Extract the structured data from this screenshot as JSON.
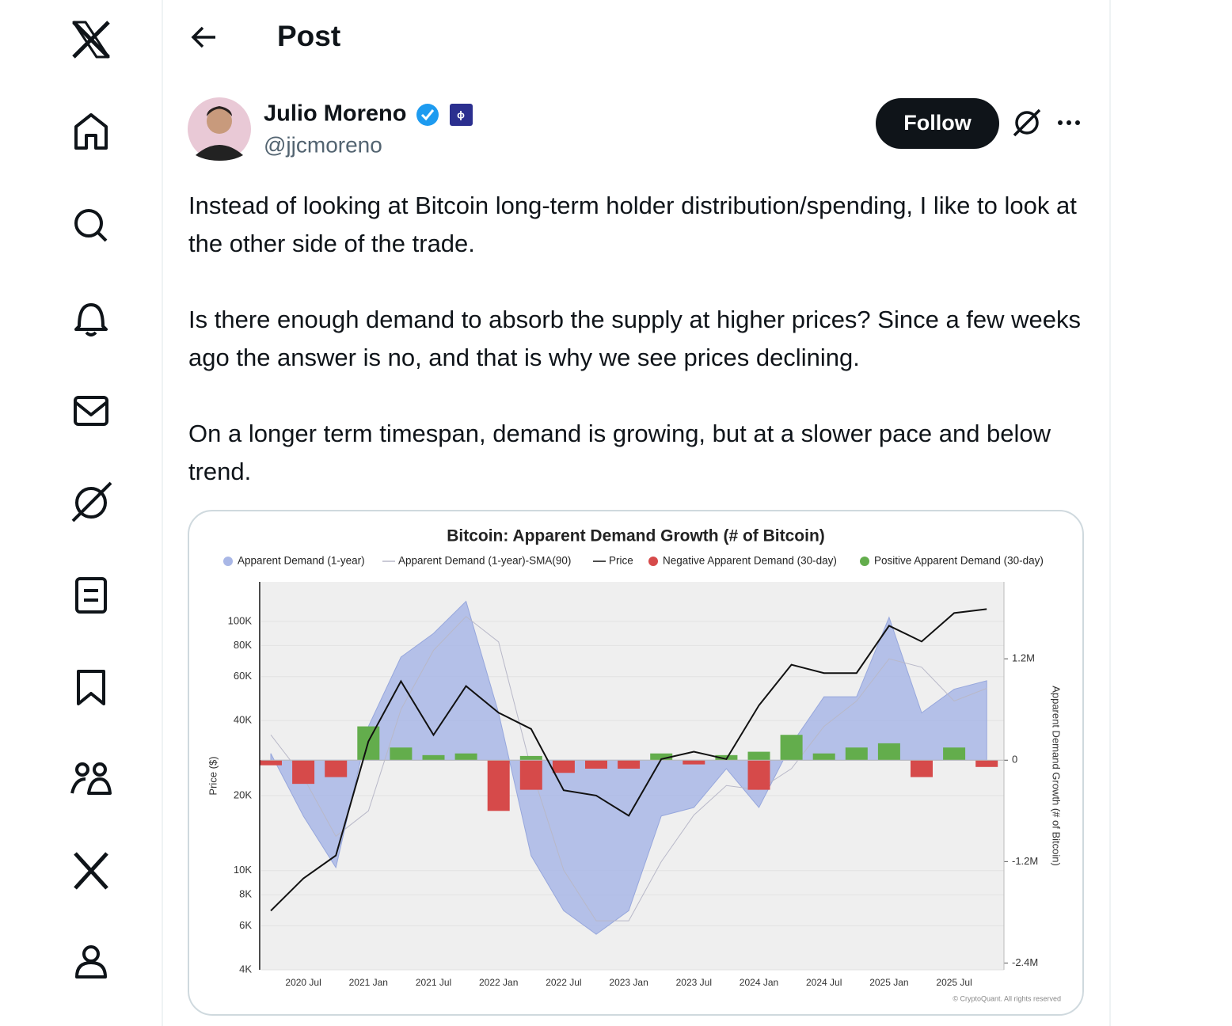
{
  "header": {
    "title": "Post"
  },
  "post": {
    "author": "Julio Moreno",
    "handle": "@jjcmoreno",
    "follow": "Follow",
    "paragraphs": [
      "Instead of looking at Bitcoin long-term holder distribution/spending, I like to look at the other side of the trade.",
      "Is there enough demand to absorb the supply at higher prices? Since a few weeks ago  the answer is no, and that is why we see prices declining.",
      "On a longer term timespan, demand is growing, but at a slower pace and below trend."
    ]
  },
  "chart_data": {
    "type": "combo",
    "title": "Bitcoin: Apparent Demand Growth (# of Bitcoin)",
    "ylabel": "Price ($)",
    "y2label": "Apparent Demand Growth (# of Bitcoin)",
    "credit": "© CryptoQuant. All rights reserved",
    "categories": [
      null,
      "2020 Jul",
      null,
      "2021 Jan",
      null,
      "2021 Jul",
      null,
      "2022 Jan",
      null,
      "2022 Jul",
      null,
      "2023 Jan",
      null,
      "2023 Jul",
      null,
      "2024 Jan",
      null,
      "2024 Jul",
      null,
      "2025 Jan",
      null,
      "2025 Jul",
      null
    ],
    "ylog": true,
    "ylim": [
      4000,
      144000
    ],
    "yticks": [
      {
        "value": 4000,
        "label": "4K"
      },
      {
        "value": 6000,
        "label": "6K"
      },
      {
        "value": 8000,
        "label": "8K"
      },
      {
        "value": 10000,
        "label": "10K"
      },
      {
        "value": 20000,
        "label": "20K"
      },
      {
        "value": 40000,
        "label": "40K"
      },
      {
        "value": 60000,
        "label": "60K"
      },
      {
        "value": 80000,
        "label": "80K"
      },
      {
        "value": 100000,
        "label": "100K"
      }
    ],
    "y2lim": [
      -2480000,
      2110000
    ],
    "y2ticks": [
      {
        "value": -2400000,
        "label": "-2.4M"
      },
      {
        "value": -1200000,
        "label": "-1.2M"
      },
      0,
      {
        "value": 1200000,
        "label": "1.2M"
      }
    ],
    "grid": true,
    "series": [
      {
        "name": "Apparent Demand (1-year)",
        "color": "#a9b7e6",
        "mark": "area",
        "axis": "y2",
        "values": [
          80000,
          -660000,
          -1270000,
          400000,
          1220000,
          1500000,
          1880000,
          560000,
          -1130000,
          -1780000,
          -2060000,
          -1780000,
          -660000,
          -560000,
          -100000,
          -560000,
          190000,
          750000,
          750000,
          1690000,
          560000,
          840000,
          940000
        ]
      },
      {
        "name": "Apparent Demand (1-year)-SMA(90)",
        "color": "#b8b8c8",
        "mark": "line",
        "axis": "y2",
        "values": [
          300000,
          -200000,
          -900000,
          -600000,
          600000,
          1300000,
          1700000,
          1400000,
          -100000,
          -1300000,
          -1900000,
          -1900000,
          -1200000,
          -650000,
          -300000,
          -350000,
          -100000,
          400000,
          700000,
          1200000,
          1100000,
          700000,
          850000
        ]
      },
      {
        "name": "Price",
        "color": "#111111",
        "mark": "line",
        "axis": "y",
        "values": [
          6900,
          9300,
          11500,
          33000,
          57500,
          35000,
          55000,
          43000,
          37000,
          21000,
          20000,
          16600,
          28000,
          30000,
          28000,
          46000,
          67000,
          62000,
          62000,
          96000,
          83000,
          108000,
          112000
        ]
      },
      {
        "name": "Negative Apparent Demand (30-day)",
        "color": "#d64a4a",
        "mark": "bar",
        "axis": "y2",
        "values": [
          -60000,
          -280000,
          -200000,
          null,
          null,
          null,
          null,
          -600000,
          -350000,
          -150000,
          -100000,
          -100000,
          null,
          -50000,
          null,
          -350000,
          null,
          null,
          null,
          null,
          -200000,
          null,
          -80000
        ]
      },
      {
        "name": "Positive Apparent Demand (30-day)",
        "color": "#63ad4c",
        "mark": "bar",
        "axis": "y2",
        "values": [
          null,
          null,
          null,
          400000,
          150000,
          60000,
          80000,
          null,
          50000,
          null,
          null,
          null,
          80000,
          null,
          60000,
          100000,
          300000,
          80000,
          150000,
          200000,
          null,
          150000,
          null
        ]
      }
    ]
  }
}
